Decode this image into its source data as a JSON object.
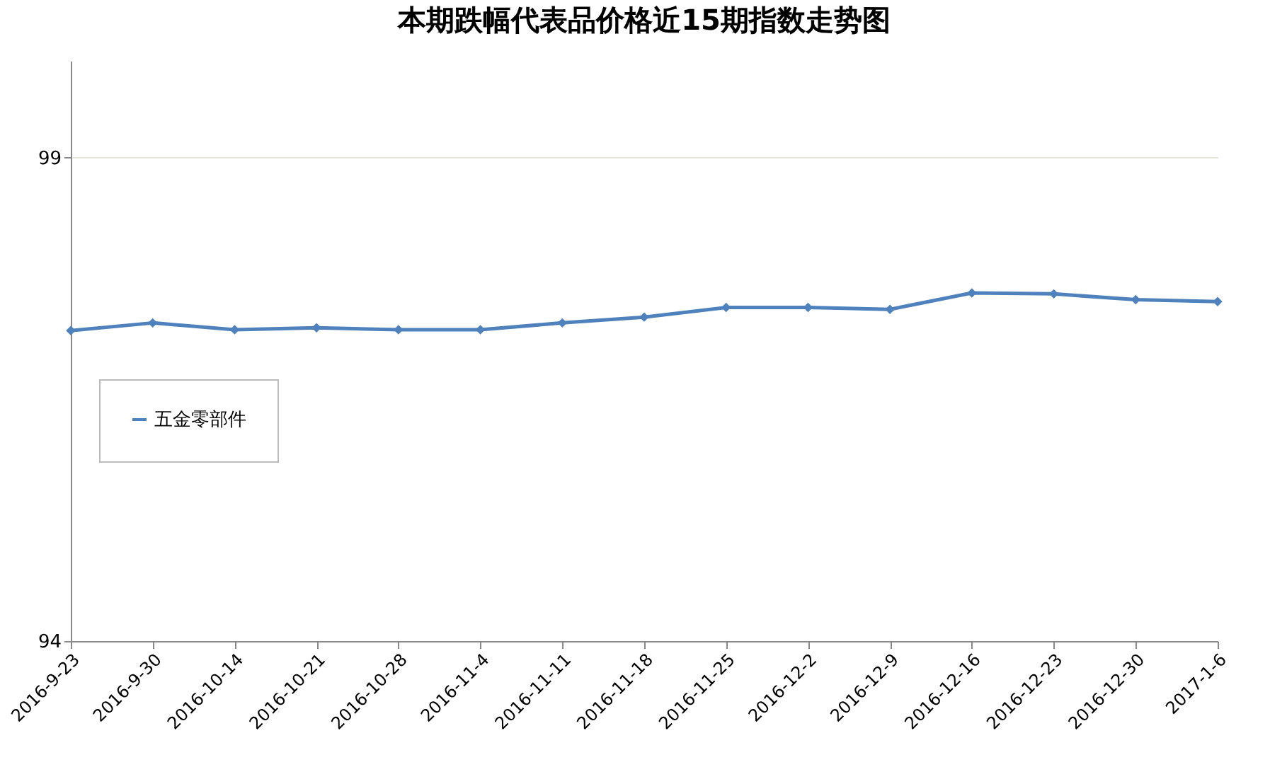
{
  "chart_data": {
    "type": "line",
    "title": "本期跌幅代表品价格近15期指数走势图",
    "categories": [
      "2016-9-23",
      "2016-9-30",
      "2016-10-14",
      "2016-10-21",
      "2016-10-28",
      "2016-11-4",
      "2016-11-11",
      "2016-11-18",
      "2016-11-25",
      "2016-12-2",
      "2016-12-9",
      "2016-12-16",
      "2016-12-23",
      "2016-12-30",
      "2017-1-6"
    ],
    "series": [
      {
        "name": "五金零部件",
        "color": "#4f81bd",
        "values": [
          97.21,
          97.29,
          97.22,
          97.24,
          97.22,
          97.22,
          97.29,
          97.35,
          97.45,
          97.45,
          97.43,
          97.6,
          97.59,
          97.53,
          97.51
        ]
      }
    ],
    "ylim": [
      94,
      100
    ],
    "yticks": [
      94,
      99
    ],
    "grid": "y",
    "legend": "left",
    "marker": "diamond",
    "line_style": "solid"
  }
}
